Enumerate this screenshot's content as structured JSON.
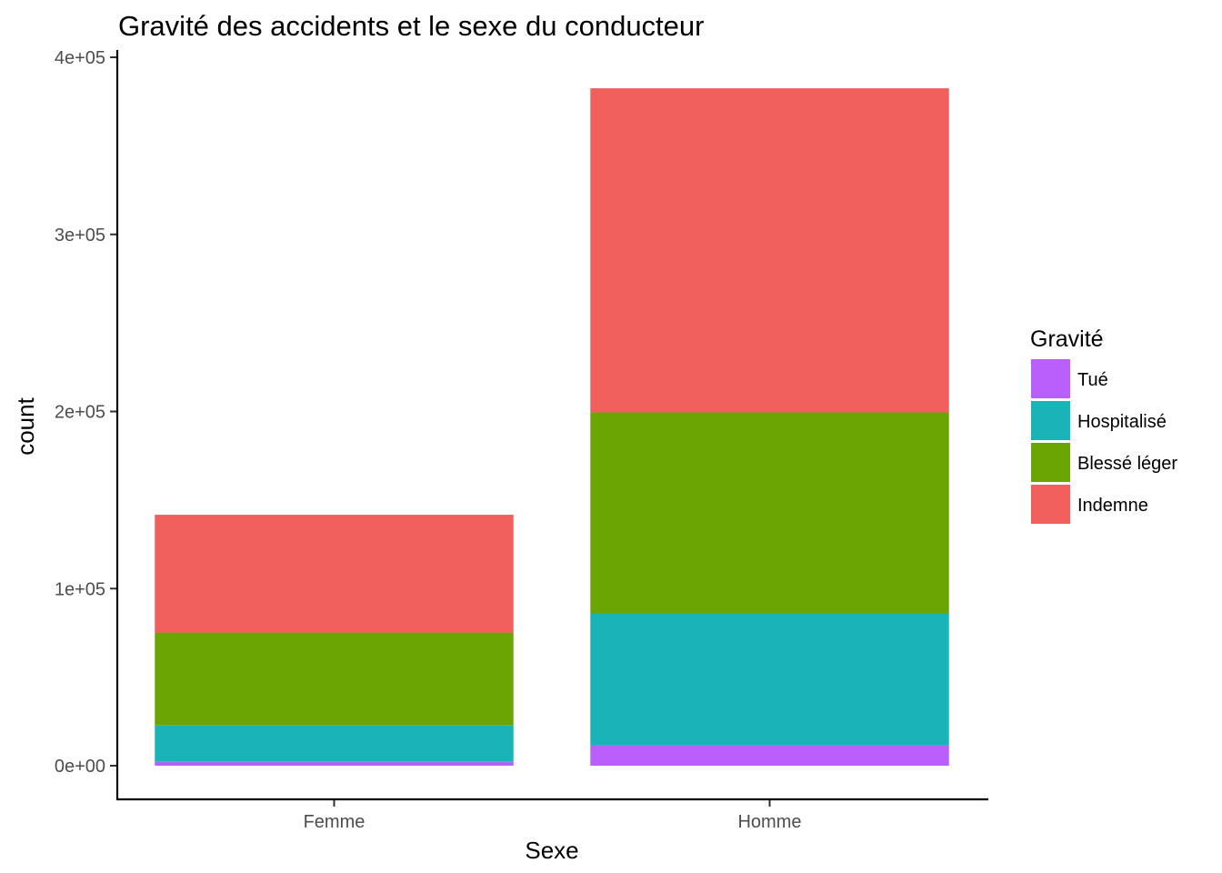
{
  "chart_data": {
    "type": "bar",
    "stacked": true,
    "title": "Gravité des accidents et le sexe du conducteur",
    "xlabel": "Sexe",
    "ylabel": "count",
    "categories": [
      "Femme",
      "Homme"
    ],
    "ylim": [
      0,
      400000
    ],
    "yticks": [
      {
        "value": 0,
        "label": "0e+00"
      },
      {
        "value": 100000,
        "label": "1e+05"
      },
      {
        "value": 200000,
        "label": "2e+05"
      },
      {
        "value": 300000,
        "label": "3e+05"
      },
      {
        "value": 400000,
        "label": "4e+05"
      }
    ],
    "grid": false,
    "legend": {
      "title": "Gravité",
      "placement": "right"
    },
    "series": [
      {
        "name": "Tué",
        "color": "#B95FFB",
        "values": [
          2200,
          11500
        ]
      },
      {
        "name": "Hospitalisé",
        "color": "#19B4B8",
        "values": [
          20500,
          74500
        ]
      },
      {
        "name": "Blessé léger",
        "color": "#6BA503",
        "values": [
          52500,
          113500
        ]
      },
      {
        "name": "Indemne",
        "color": "#F2605D",
        "values": [
          66500,
          183000
        ]
      }
    ]
  }
}
